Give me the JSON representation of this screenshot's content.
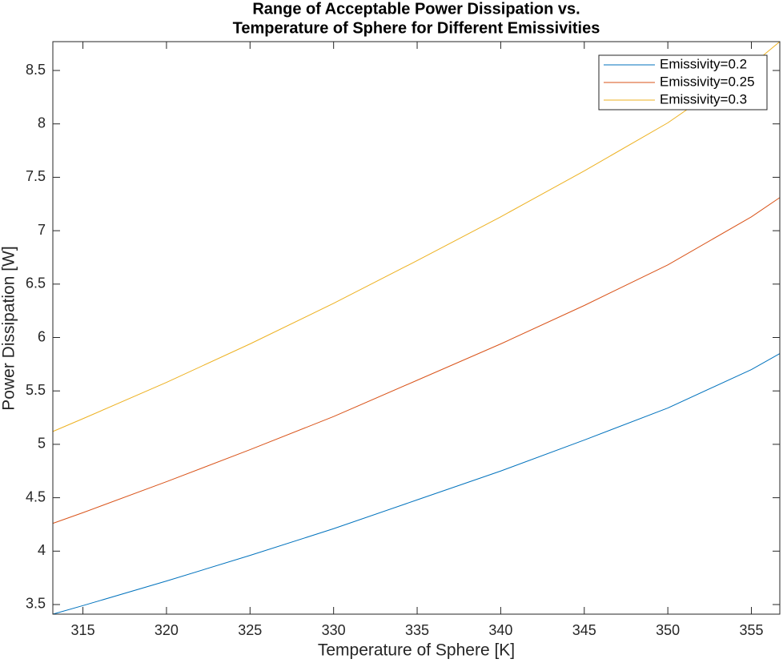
{
  "chart_data": {
    "type": "line",
    "title": [
      "Range of Acceptable Power Dissipation vs.",
      "Temperature of Sphere for Different Emissivities"
    ],
    "x_label": "Temperature of Sphere [K]",
    "y_label": "Power Dissipation [W]",
    "x": [
      313.2,
      315,
      320,
      325,
      330,
      335,
      340,
      345,
      350,
      355,
      356.7
    ],
    "series": [
      {
        "name": "Emissivity=0.2",
        "color": "#0072BD",
        "values": [
          3.41,
          3.49,
          3.72,
          3.96,
          4.21,
          4.48,
          4.75,
          5.04,
          5.34,
          5.7,
          5.85
        ]
      },
      {
        "name": "Emissivity=0.25",
        "color": "#D95319",
        "values": [
          4.26,
          4.36,
          4.65,
          4.95,
          5.26,
          5.6,
          5.94,
          6.3,
          6.68,
          7.13,
          7.31
        ]
      },
      {
        "name": "Emissivity=0.3",
        "color": "#EDB120",
        "values": [
          5.12,
          5.24,
          5.58,
          5.94,
          6.32,
          6.72,
          7.13,
          7.56,
          8.01,
          8.55,
          8.77
        ]
      }
    ],
    "xlim": [
      313.2,
      356.7
    ],
    "ylim": [
      3.41,
      8.77
    ],
    "xticks": [
      315,
      320,
      325,
      330,
      335,
      340,
      345,
      350,
      355
    ],
    "yticks": [
      3.5,
      4,
      4.5,
      5,
      5.5,
      6,
      6.5,
      7,
      7.5,
      8,
      8.5
    ],
    "grid": false,
    "legend": "top-right"
  }
}
